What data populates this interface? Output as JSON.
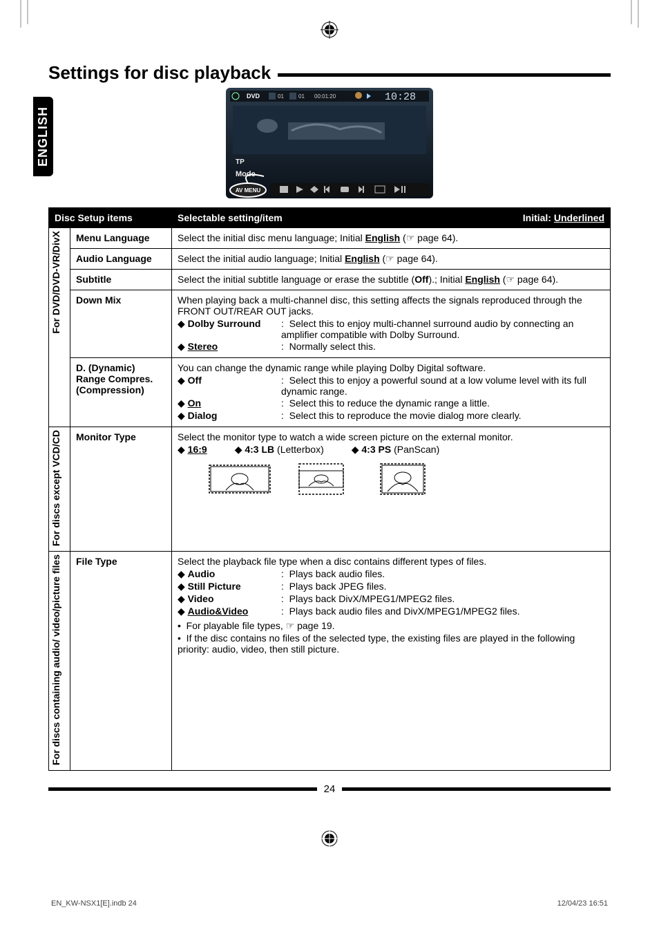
{
  "side_tab": "ENGLISH",
  "title": "Settings for disc playback",
  "hero": {
    "top_bar": [
      "DVD",
      "01",
      "01",
      "00:01:20",
      "10:28"
    ],
    "bottom_labels": [
      "TP",
      "Mode",
      "AV MENU"
    ]
  },
  "table": {
    "header_left": "Disc Setup items",
    "header_mid": "Selectable setting/item",
    "header_right_prefix": "Initial: ",
    "header_right_value": "Underlined",
    "groups": [
      {
        "vlabel": "For DVD/DVD-VR/DivX",
        "rows": [
          {
            "label": "Menu Language",
            "body": {
              "lead": "Select the initial disc menu language; Initial ",
              "init": "English",
              "tail": " (☞ page 64)."
            }
          },
          {
            "label": "Audio Language",
            "body": {
              "lead": "Select the initial audio language; Initial ",
              "init": "English",
              "tail": " (☞ page 64)."
            }
          },
          {
            "label": "Subtitle",
            "body": {
              "pre": "Select the initial subtitle language or erase the subtitle (",
              "off": "Off",
              "mid": ").; Initial ",
              "init": "English",
              "tail": " (☞ page 64)."
            }
          },
          {
            "label": "Down Mix",
            "intro": "When playing back a multi-channel disc, this setting affects the signals reproduced through the FRONT OUT/REAR OUT jacks.",
            "options": [
              {
                "marker": "◆",
                "name": "Dolby Surround",
                "underline": false,
                "desc": "Select this to enjoy multi-channel surround audio by connecting an amplifier compatible with Dolby Surround."
              },
              {
                "marker": "◆",
                "name": "Stereo",
                "underline": true,
                "desc": "Normally select this."
              }
            ]
          },
          {
            "label": "D. (Dynamic) Range Compres. (Compression)",
            "intro": "You can change the dynamic range while playing Dolby Digital software.",
            "options": [
              {
                "marker": "◆",
                "name": "Off",
                "underline": false,
                "desc": "Select this to enjoy a powerful sound at a low volume level with its full dynamic range."
              },
              {
                "marker": "◆",
                "name": "On",
                "underline": true,
                "desc": "Select this to reduce the dynamic range a little."
              },
              {
                "marker": "◆",
                "name": "Dialog",
                "underline": false,
                "desc": "Select this to reproduce the movie dialog more clearly."
              }
            ]
          }
        ]
      },
      {
        "vlabel": "For discs except VCD/CD",
        "rows": [
          {
            "label": "Monitor Type",
            "intro": "Select the monitor type to watch a wide screen picture on the external monitor.",
            "mt_options": [
              {
                "marker": "◆",
                "name": "16:9",
                "underline": true,
                "suffix": ""
              },
              {
                "marker": "◆",
                "name": "4:3 LB",
                "underline": false,
                "suffix": " (Letterbox)"
              },
              {
                "marker": "◆",
                "name": "4:3 PS",
                "underline": false,
                "suffix": " (PanScan)"
              }
            ]
          }
        ]
      },
      {
        "vlabel": "For discs containing audio/ video/picture files",
        "rows": [
          {
            "label": "File Type",
            "intro": "Select the playback file type when a disc contains different types of files.",
            "options": [
              {
                "marker": "◆",
                "name": "Audio",
                "underline": false,
                "desc": "Plays back audio files."
              },
              {
                "marker": "◆",
                "name": "Still Picture",
                "underline": false,
                "desc": "Plays back JPEG files."
              },
              {
                "marker": "◆",
                "name": "Video",
                "underline": false,
                "desc": "Plays back DivX/MPEG1/MPEG2 files."
              },
              {
                "marker": "◆",
                "name": "Audio&Video",
                "underline": true,
                "desc": "Plays back audio files and DivX/MPEG1/MPEG2 files."
              }
            ],
            "bullets": [
              "For playable file types, ☞ page 19.",
              "If the disc contains no files of the selected type, the existing files are played in the following priority: audio, video, then still picture."
            ]
          }
        ]
      }
    ]
  },
  "page_number": "24",
  "footer_left": "EN_KW-NSX1[E].indb   24",
  "footer_right": "12/04/23   16:51"
}
